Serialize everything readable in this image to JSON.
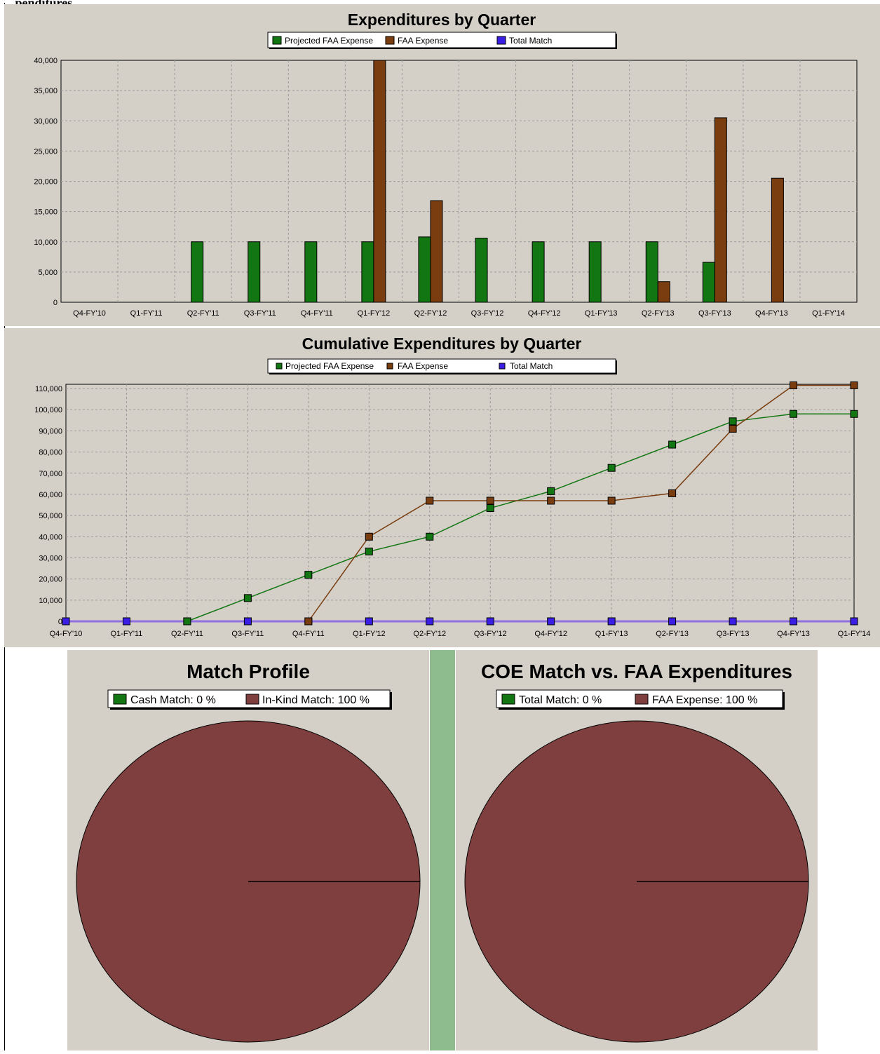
{
  "page": {
    "header_fragment": "...penditures"
  },
  "colors": {
    "panel_bg": "#d4d0c8",
    "projected": "#127712",
    "faa": "#7a3d10",
    "match": "#3b1ee6",
    "pie_brown": "#7f3f3f",
    "divider": "#8fbc8f"
  },
  "chart_data": [
    {
      "type": "bar",
      "title": "Expenditures by Quarter",
      "categories": [
        "Q4-FY'10",
        "Q1-FY'11",
        "Q2-FY'11",
        "Q3-FY'11",
        "Q4-FY'11",
        "Q1-FY'12",
        "Q2-FY'12",
        "Q3-FY'12",
        "Q4-FY'12",
        "Q1-FY'13",
        "Q2-FY'13",
        "Q3-FY'13",
        "Q4-FY'13",
        "Q1-FY'14"
      ],
      "series": [
        {
          "name": "Projected FAA Expense",
          "values": [
            0,
            0,
            10000,
            10000,
            10000,
            10000,
            10800,
            10600,
            10000,
            10000,
            10000,
            6600,
            0,
            0
          ]
        },
        {
          "name": "FAA Expense",
          "values": [
            0,
            0,
            0,
            0,
            0,
            40000,
            16800,
            0,
            0,
            0,
            3400,
            30500,
            20500,
            0
          ]
        },
        {
          "name": "Total Match",
          "values": [
            0,
            0,
            0,
            0,
            0,
            0,
            0,
            0,
            0,
            0,
            0,
            0,
            0,
            0
          ]
        }
      ],
      "ylim": [
        0,
        40000
      ],
      "yticks": [
        "0",
        "5,000",
        "10,000",
        "15,000",
        "20,000",
        "25,000",
        "30,000",
        "35,000",
        "40,000"
      ],
      "ytick_values": [
        0,
        5000,
        10000,
        15000,
        20000,
        25000,
        30000,
        35000,
        40000
      ],
      "grid": true,
      "legend_position": "top-center"
    },
    {
      "type": "line",
      "title": "Cumulative Expenditures by Quarter",
      "categories": [
        "Q4-FY'10",
        "Q1-FY'11",
        "Q2-FY'11",
        "Q3-FY'11",
        "Q4-FY'11",
        "Q1-FY'12",
        "Q2-FY'12",
        "Q3-FY'12",
        "Q4-FY'12",
        "Q1-FY'13",
        "Q2-FY'13",
        "Q3-FY'13",
        "Q4-FY'13",
        "Q1-FY'14"
      ],
      "series": [
        {
          "name": "Projected FAA Expense",
          "values": [
            null,
            null,
            0,
            11000,
            22000,
            33000,
            40000,
            53500,
            61500,
            72500,
            83500,
            94500,
            98000,
            98000
          ]
        },
        {
          "name": "FAA Expense",
          "values": [
            null,
            null,
            null,
            null,
            0,
            40000,
            57000,
            57000,
            57000,
            57000,
            60500,
            91000,
            111500,
            111500
          ]
        },
        {
          "name": "Total Match",
          "values": [
            0,
            0,
            0,
            0,
            0,
            0,
            0,
            0,
            0,
            0,
            0,
            0,
            0,
            0
          ]
        }
      ],
      "ylim": [
        0,
        110000
      ],
      "yticks": [
        "0",
        "10,000",
        "20,000",
        "30,000",
        "40,000",
        "50,000",
        "60,000",
        "70,000",
        "80,000",
        "90,000",
        "100,000",
        "110,000"
      ],
      "ytick_values": [
        0,
        10000,
        20000,
        30000,
        40000,
        50000,
        60000,
        70000,
        80000,
        90000,
        100000,
        110000
      ],
      "grid": true,
      "legend_position": "top-center"
    },
    {
      "type": "pie",
      "title": "Match Profile",
      "slices": [
        {
          "name": "Cash Match",
          "label": "Cash Match: 0 %",
          "value": 0
        },
        {
          "name": "In-Kind Match",
          "label": "In-Kind Match: 100 %",
          "value": 100
        }
      ],
      "legend_position": "top-center"
    },
    {
      "type": "pie",
      "title": "COE Match vs. FAA Expenditures",
      "slices": [
        {
          "name": "Total Match",
          "label": "Total Match: 0 %",
          "value": 0
        },
        {
          "name": "FAA Expense",
          "label": "FAA Expense: 100 %",
          "value": 100
        }
      ],
      "legend_position": "top-center"
    }
  ]
}
